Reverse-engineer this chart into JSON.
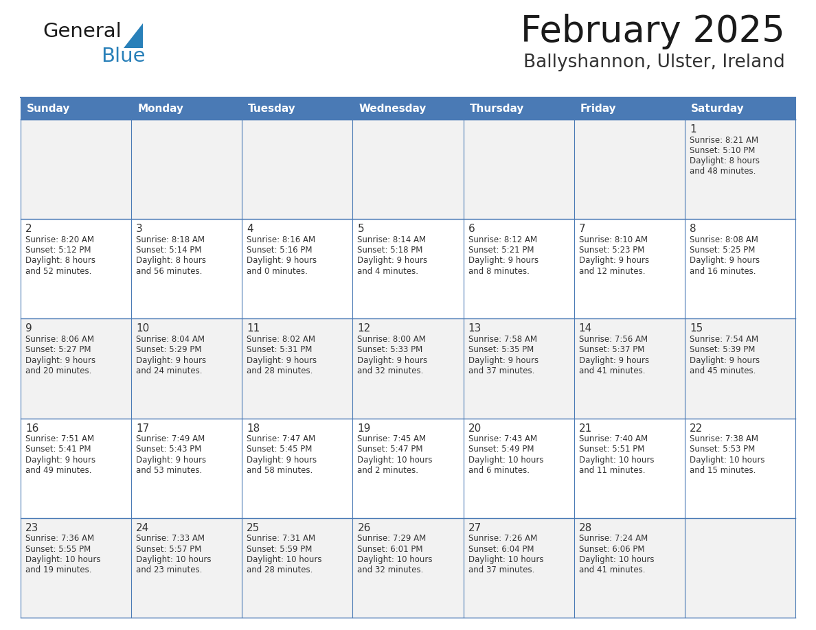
{
  "title": "February 2025",
  "subtitle": "Ballyshannon, Ulster, Ireland",
  "header_color": "#4A7AB5",
  "header_text_color": "#FFFFFF",
  "cell_bg_row0": "#F2F2F2",
  "cell_bg_row1": "#FFFFFF",
  "cell_bg_row2": "#F2F2F2",
  "cell_bg_row3": "#FFFFFF",
  "cell_bg_row4": "#F2F2F2",
  "day_headers": [
    "Sunday",
    "Monday",
    "Tuesday",
    "Wednesday",
    "Thursday",
    "Friday",
    "Saturday"
  ],
  "title_color": "#1a1a1a",
  "subtitle_color": "#333333",
  "line_color": "#4A7AB5",
  "text_color": "#333333",
  "logo_general_color": "#1a1a1a",
  "logo_blue_color": "#2980b9",
  "logo_triangle_color": "#2980b9",
  "days": [
    {
      "date": 1,
      "col": 6,
      "row": 0,
      "sunrise": "8:21 AM",
      "sunset": "5:10 PM",
      "daylight_h": "8 hours",
      "daylight_m": "48 minutes"
    },
    {
      "date": 2,
      "col": 0,
      "row": 1,
      "sunrise": "8:20 AM",
      "sunset": "5:12 PM",
      "daylight_h": "8 hours",
      "daylight_m": "52 minutes"
    },
    {
      "date": 3,
      "col": 1,
      "row": 1,
      "sunrise": "8:18 AM",
      "sunset": "5:14 PM",
      "daylight_h": "8 hours",
      "daylight_m": "56 minutes"
    },
    {
      "date": 4,
      "col": 2,
      "row": 1,
      "sunrise": "8:16 AM",
      "sunset": "5:16 PM",
      "daylight_h": "9 hours",
      "daylight_m": "0 minutes"
    },
    {
      "date": 5,
      "col": 3,
      "row": 1,
      "sunrise": "8:14 AM",
      "sunset": "5:18 PM",
      "daylight_h": "9 hours",
      "daylight_m": "4 minutes"
    },
    {
      "date": 6,
      "col": 4,
      "row": 1,
      "sunrise": "8:12 AM",
      "sunset": "5:21 PM",
      "daylight_h": "9 hours",
      "daylight_m": "8 minutes"
    },
    {
      "date": 7,
      "col": 5,
      "row": 1,
      "sunrise": "8:10 AM",
      "sunset": "5:23 PM",
      "daylight_h": "9 hours",
      "daylight_m": "12 minutes"
    },
    {
      "date": 8,
      "col": 6,
      "row": 1,
      "sunrise": "8:08 AM",
      "sunset": "5:25 PM",
      "daylight_h": "9 hours",
      "daylight_m": "16 minutes"
    },
    {
      "date": 9,
      "col": 0,
      "row": 2,
      "sunrise": "8:06 AM",
      "sunset": "5:27 PM",
      "daylight_h": "9 hours",
      "daylight_m": "20 minutes"
    },
    {
      "date": 10,
      "col": 1,
      "row": 2,
      "sunrise": "8:04 AM",
      "sunset": "5:29 PM",
      "daylight_h": "9 hours",
      "daylight_m": "24 minutes"
    },
    {
      "date": 11,
      "col": 2,
      "row": 2,
      "sunrise": "8:02 AM",
      "sunset": "5:31 PM",
      "daylight_h": "9 hours",
      "daylight_m": "28 minutes"
    },
    {
      "date": 12,
      "col": 3,
      "row": 2,
      "sunrise": "8:00 AM",
      "sunset": "5:33 PM",
      "daylight_h": "9 hours",
      "daylight_m": "32 minutes"
    },
    {
      "date": 13,
      "col": 4,
      "row": 2,
      "sunrise": "7:58 AM",
      "sunset": "5:35 PM",
      "daylight_h": "9 hours",
      "daylight_m": "37 minutes"
    },
    {
      "date": 14,
      "col": 5,
      "row": 2,
      "sunrise": "7:56 AM",
      "sunset": "5:37 PM",
      "daylight_h": "9 hours",
      "daylight_m": "41 minutes"
    },
    {
      "date": 15,
      "col": 6,
      "row": 2,
      "sunrise": "7:54 AM",
      "sunset": "5:39 PM",
      "daylight_h": "9 hours",
      "daylight_m": "45 minutes"
    },
    {
      "date": 16,
      "col": 0,
      "row": 3,
      "sunrise": "7:51 AM",
      "sunset": "5:41 PM",
      "daylight_h": "9 hours",
      "daylight_m": "49 minutes"
    },
    {
      "date": 17,
      "col": 1,
      "row": 3,
      "sunrise": "7:49 AM",
      "sunset": "5:43 PM",
      "daylight_h": "9 hours",
      "daylight_m": "53 minutes"
    },
    {
      "date": 18,
      "col": 2,
      "row": 3,
      "sunrise": "7:47 AM",
      "sunset": "5:45 PM",
      "daylight_h": "9 hours",
      "daylight_m": "58 minutes"
    },
    {
      "date": 19,
      "col": 3,
      "row": 3,
      "sunrise": "7:45 AM",
      "sunset": "5:47 PM",
      "daylight_h": "10 hours",
      "daylight_m": "2 minutes"
    },
    {
      "date": 20,
      "col": 4,
      "row": 3,
      "sunrise": "7:43 AM",
      "sunset": "5:49 PM",
      "daylight_h": "10 hours",
      "daylight_m": "6 minutes"
    },
    {
      "date": 21,
      "col": 5,
      "row": 3,
      "sunrise": "7:40 AM",
      "sunset": "5:51 PM",
      "daylight_h": "10 hours",
      "daylight_m": "11 minutes"
    },
    {
      "date": 22,
      "col": 6,
      "row": 3,
      "sunrise": "7:38 AM",
      "sunset": "5:53 PM",
      "daylight_h": "10 hours",
      "daylight_m": "15 minutes"
    },
    {
      "date": 23,
      "col": 0,
      "row": 4,
      "sunrise": "7:36 AM",
      "sunset": "5:55 PM",
      "daylight_h": "10 hours",
      "daylight_m": "19 minutes"
    },
    {
      "date": 24,
      "col": 1,
      "row": 4,
      "sunrise": "7:33 AM",
      "sunset": "5:57 PM",
      "daylight_h": "10 hours",
      "daylight_m": "23 minutes"
    },
    {
      "date": 25,
      "col": 2,
      "row": 4,
      "sunrise": "7:31 AM",
      "sunset": "5:59 PM",
      "daylight_h": "10 hours",
      "daylight_m": "28 minutes"
    },
    {
      "date": 26,
      "col": 3,
      "row": 4,
      "sunrise": "7:29 AM",
      "sunset": "6:01 PM",
      "daylight_h": "10 hours",
      "daylight_m": "32 minutes"
    },
    {
      "date": 27,
      "col": 4,
      "row": 4,
      "sunrise": "7:26 AM",
      "sunset": "6:04 PM",
      "daylight_h": "10 hours",
      "daylight_m": "37 minutes"
    },
    {
      "date": 28,
      "col": 5,
      "row": 4,
      "sunrise": "7:24 AM",
      "sunset": "6:06 PM",
      "daylight_h": "10 hours",
      "daylight_m": "41 minutes"
    }
  ]
}
